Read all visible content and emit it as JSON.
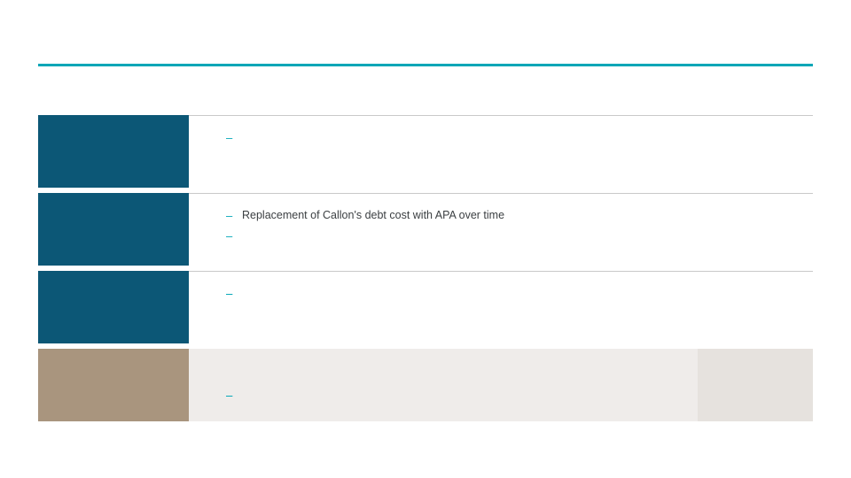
{
  "colors": {
    "accent": "#00a6b7",
    "rowTealBg": "#0c5776",
    "rowTanBg": "#a9957e",
    "totalBodyBg": "#efecea",
    "totalAmountBg": "#e6e2de",
    "divider": "#c9c9c9",
    "textBody": "#3b3f42",
    "textWhite": "#ffffff"
  },
  "rows": [
    {
      "label": "",
      "label_bg": "#0c5776",
      "body_bg": "#ffffff",
      "bullet_color": "#00a6b7",
      "bullets": [
        ""
      ]
    },
    {
      "label": "",
      "label_bg": "#0c5776",
      "body_bg": "#ffffff",
      "bullet_color": "#00a6b7",
      "bullets": [
        "Replacement of Callon's debt cost with APA over time",
        ""
      ]
    },
    {
      "label": "",
      "label_bg": "#0c5776",
      "body_bg": "#ffffff",
      "bullet_color": "#00a6b7",
      "bullets": [
        "",
        ""
      ]
    },
    {
      "label": "",
      "label_bg": "#a9957e",
      "body_bg": "#efecea",
      "amount_bg": "#e6e2de",
      "bullet_color": "#00a6b7",
      "bullets": [
        "",
        ""
      ],
      "amount": ""
    }
  ],
  "page_number": ""
}
